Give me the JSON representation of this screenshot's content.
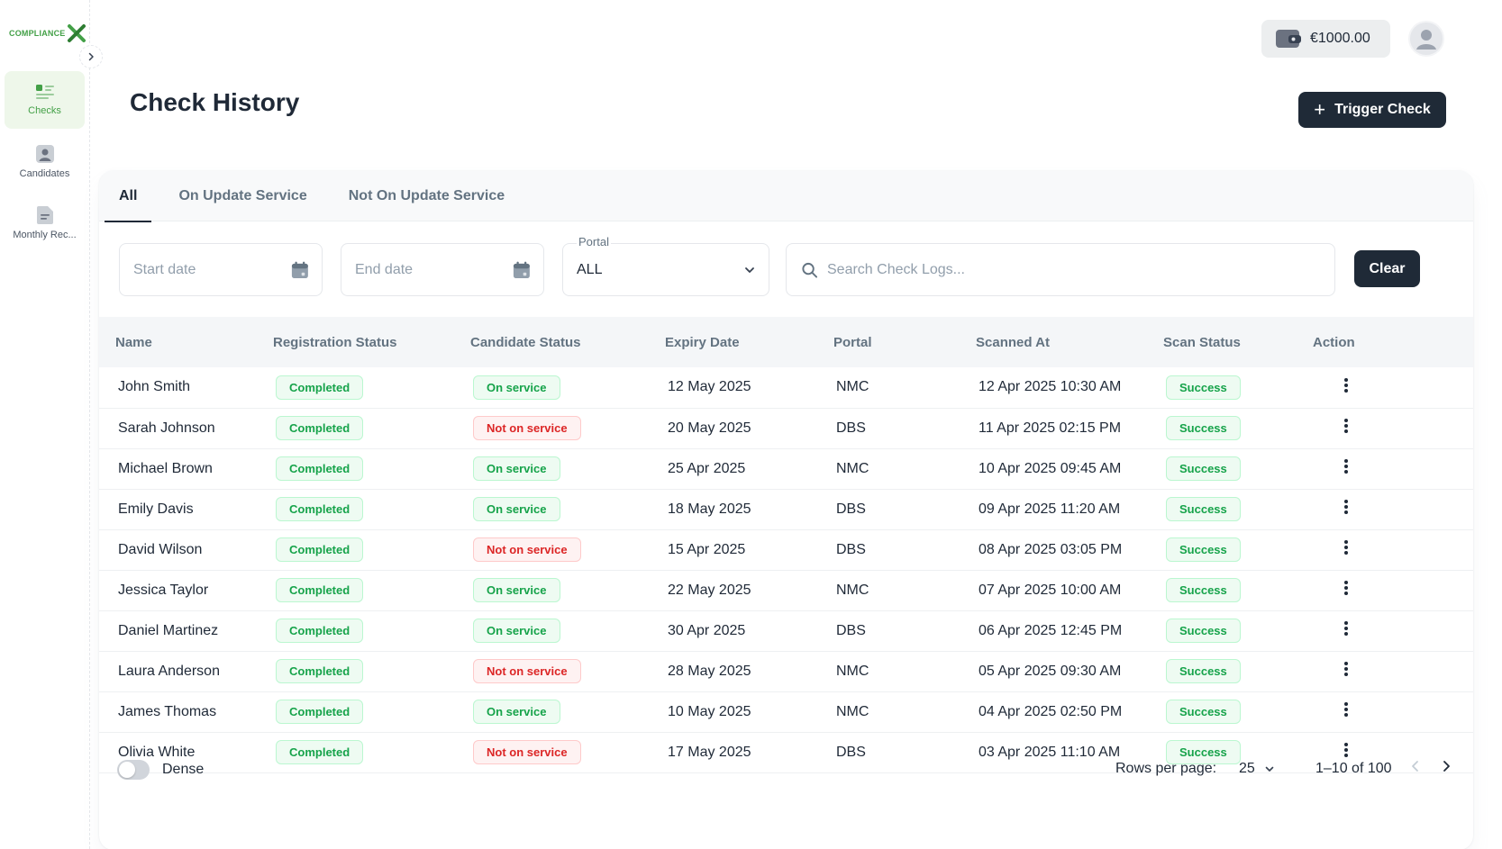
{
  "brand": {
    "logo_text": "COMPLIANCE",
    "accent_color": "#43a047"
  },
  "sidebar": {
    "items": [
      {
        "label": "Checks",
        "icon": "checks-list-icon",
        "active": true
      },
      {
        "label": "Candidates",
        "icon": "candidate-icon",
        "active": false
      },
      {
        "label": "Monthly Rec...",
        "icon": "document-icon",
        "active": false
      }
    ]
  },
  "header": {
    "wallet_amount": "€1000.00",
    "page_title": "Check History",
    "trigger_label": "Trigger Check"
  },
  "tabs": [
    {
      "label": "All",
      "active": true
    },
    {
      "label": "On Update Service",
      "active": false
    },
    {
      "label": "Not On Update Service",
      "active": false
    }
  ],
  "filters": {
    "start_placeholder": "Start date",
    "end_placeholder": "End date",
    "portal_label": "Portal",
    "portal_value": "ALL",
    "search_placeholder": "Search Check Logs...",
    "clear_label": "Clear"
  },
  "table": {
    "columns": [
      "Name",
      "Registration Status",
      "Candidate Status",
      "Expiry Date",
      "Portal",
      "Scanned At",
      "Scan Status",
      "Action"
    ],
    "rows": [
      {
        "name": "John Smith",
        "registration": "Completed",
        "candidate": "On service",
        "candidate_tone": "green",
        "expiry": "12 May 2025",
        "portal": "NMC",
        "scanned": "12 Apr 2025 10:30 AM",
        "scan": "Success"
      },
      {
        "name": "Sarah Johnson",
        "registration": "Completed",
        "candidate": "Not on service",
        "candidate_tone": "red",
        "expiry": "20 May 2025",
        "portal": "DBS",
        "scanned": "11 Apr 2025 02:15 PM",
        "scan": "Success"
      },
      {
        "name": "Michael Brown",
        "registration": "Completed",
        "candidate": "On service",
        "candidate_tone": "green",
        "expiry": "25 Apr 2025",
        "portal": "NMC",
        "scanned": "10 Apr 2025 09:45 AM",
        "scan": "Success"
      },
      {
        "name": "Emily Davis",
        "registration": "Completed",
        "candidate": "On service",
        "candidate_tone": "green",
        "expiry": "18 May 2025",
        "portal": "DBS",
        "scanned": "09 Apr 2025 11:20 AM",
        "scan": "Success"
      },
      {
        "name": "David Wilson",
        "registration": "Completed",
        "candidate": "Not on service",
        "candidate_tone": "red",
        "expiry": "15 Apr 2025",
        "portal": "DBS",
        "scanned": "08 Apr 2025 03:05 PM",
        "scan": "Success"
      },
      {
        "name": "Jessica Taylor",
        "registration": "Completed",
        "candidate": "On service",
        "candidate_tone": "green",
        "expiry": "22 May 2025",
        "portal": "NMC",
        "scanned": "07 Apr 2025 10:00 AM",
        "scan": "Success"
      },
      {
        "name": "Daniel Martinez",
        "registration": "Completed",
        "candidate": "On service",
        "candidate_tone": "green",
        "expiry": "30 Apr 2025",
        "portal": "DBS",
        "scanned": "06 Apr 2025 12:45 PM",
        "scan": "Success"
      },
      {
        "name": "Laura Anderson",
        "registration": "Completed",
        "candidate": "Not on service",
        "candidate_tone": "red",
        "expiry": "28 May 2025",
        "portal": "NMC",
        "scanned": "05 Apr 2025 09:30 AM",
        "scan": "Success"
      },
      {
        "name": "James Thomas",
        "registration": "Completed",
        "candidate": "On service",
        "candidate_tone": "green",
        "expiry": "10 May 2025",
        "portal": "NMC",
        "scanned": "04 Apr 2025 02:50 PM",
        "scan": "Success"
      },
      {
        "name": "Olivia White",
        "registration": "Completed",
        "candidate": "Not on service",
        "candidate_tone": "red",
        "expiry": "17 May 2025",
        "portal": "DBS",
        "scanned": "03 Apr 2025 11:10 AM",
        "scan": "Success"
      }
    ]
  },
  "footer": {
    "dense_label": "Dense",
    "rows_per_page_label": "Rows per page:",
    "rows_per_page_value": "25",
    "range_text": "1–10 of 100"
  }
}
